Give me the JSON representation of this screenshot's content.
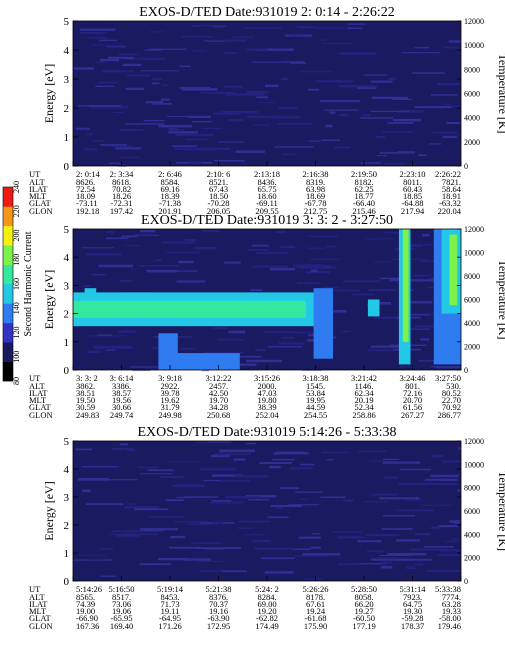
{
  "colorbar": {
    "label": "Second Harmonic Current",
    "ticks": [
      "80",
      "100",
      "120",
      "140",
      "160",
      "180",
      "200",
      "220",
      "240"
    ],
    "colors": [
      "#000000",
      "#1a1a60",
      "#3434c4",
      "#2f7cf0",
      "#22c8e6",
      "#34e8a0",
      "#7cf24a",
      "#f4f012",
      "#f49618",
      "#ee1a14"
    ]
  },
  "chart_data": [
    {
      "type": "heatmap",
      "title": "EXOS-D/TED   Date:931019  2: 0:14 - 2:26:22",
      "ylabel": "Energy [eV]",
      "ylim": [
        0,
        5
      ],
      "yticks": [
        "0",
        "1",
        "2",
        "3",
        "4",
        "5"
      ],
      "y2label": "Temperature [K]",
      "y2lim": [
        0,
        12000
      ],
      "y2ticks": [
        "0",
        "2000",
        "4000",
        "6000",
        "8000",
        "10000",
        "12000"
      ],
      "background_level": 100,
      "bands": [],
      "table": {
        "rows": [
          "UT",
          "ALT",
          "ILAT",
          "MLT",
          "GLAT",
          "GLON"
        ],
        "columns": [
          [
            "2: 0:14",
            "8626.",
            "72.54",
            "18.09",
            "-73.11",
            "192.18"
          ],
          [
            "2: 3:34",
            "8618.",
            "70.82",
            "18.26",
            "-72.31",
            "197.42"
          ],
          [
            "2: 6:46",
            "8584.",
            "69.16",
            "18.39",
            "-71.38",
            "201.91"
          ],
          [
            "2:10: 6",
            "8521.",
            "67.43",
            "18.50",
            "-70.28",
            "206.05"
          ],
          [
            "2:13:18",
            "8436.",
            "65.75",
            "18.60",
            "-69.11",
            "209.55"
          ],
          [
            "2:16:38",
            "8319.",
            "63.98",
            "18.69",
            "-67.78",
            "212.75"
          ],
          [
            "2:19:50",
            "8182.",
            "62.25",
            "18.77",
            "-66.40",
            "215.46"
          ],
          [
            "2:23:10",
            "8011.",
            "60.43",
            "18.85",
            "-64.88",
            "217.94"
          ],
          [
            "2:26:22",
            "7821.",
            "58.64",
            "18.91",
            "-63.32",
            "220.04"
          ]
        ]
      }
    },
    {
      "type": "heatmap",
      "title": "EXOS-D/TED   Date:931019  3: 3: 2 - 3:27:50",
      "ylabel": "Energy [eV]",
      "ylim": [
        0,
        5
      ],
      "yticks": [
        "0",
        "1",
        "2",
        "3",
        "4",
        "5"
      ],
      "y2label": "Temperature [K]",
      "y2lim": [
        0,
        12000
      ],
      "y2ticks": [
        "0",
        "2000",
        "4000",
        "6000",
        "8000",
        "10000",
        "12000"
      ],
      "background_level": 110,
      "bands": [
        {
          "t0": 0.0,
          "t1": 0.63,
          "e0": 1.55,
          "e1": 2.75,
          "level": 150
        },
        {
          "t0": 0.0,
          "t1": 0.6,
          "e0": 1.85,
          "e1": 2.45,
          "level": 160
        },
        {
          "t0": 0.0,
          "t1": 0.6,
          "e0": 2.0,
          "e1": 2.3,
          "level": 175
        },
        {
          "t0": 0.03,
          "t1": 0.06,
          "e0": 2.6,
          "e1": 2.9,
          "level": 150
        },
        {
          "t0": 0.22,
          "t1": 0.27,
          "e0": 0.0,
          "e1": 1.3,
          "level": 130
        },
        {
          "t0": 0.25,
          "t1": 0.43,
          "e0": 0.0,
          "e1": 0.6,
          "level": 130
        },
        {
          "t0": 0.62,
          "t1": 0.67,
          "e0": 0.4,
          "e1": 2.9,
          "level": 140
        },
        {
          "t0": 0.76,
          "t1": 0.79,
          "e0": 1.9,
          "e1": 2.5,
          "level": 145
        },
        {
          "t0": 0.84,
          "t1": 0.87,
          "e0": 0.2,
          "e1": 5.0,
          "level": 155
        },
        {
          "t0": 0.85,
          "t1": 0.865,
          "e0": 1.0,
          "e1": 5.0,
          "level": 180
        },
        {
          "t0": 0.93,
          "t1": 1.0,
          "e0": 0.2,
          "e1": 5.0,
          "level": 135
        },
        {
          "t0": 0.95,
          "t1": 1.0,
          "e0": 2.0,
          "e1": 5.0,
          "level": 155
        },
        {
          "t0": 0.97,
          "t1": 0.99,
          "e0": 2.3,
          "e1": 4.8,
          "level": 180
        }
      ],
      "table": {
        "rows": [
          "UT",
          "ALT",
          "ILAT",
          "MLT",
          "GLAT",
          "GLON"
        ],
        "columns": [
          [
            "3: 3: 2",
            "3862.",
            "38.51",
            "19.50",
            "30.59",
            "249.83"
          ],
          [
            "3: 6:14",
            "3386.",
            "38.57",
            "19.56",
            "30.66",
            "249.74"
          ],
          [
            "3: 9:18",
            "2922.",
            "39.78",
            "19.62",
            "31.79",
            "249.98"
          ],
          [
            "3:12:22",
            "2457.",
            "42.50",
            "19.70",
            "34.28",
            "250.68"
          ],
          [
            "3:15:26",
            "2000.",
            "47.03",
            "19.80",
            "38.39",
            "252.04"
          ],
          [
            "3:18:38",
            "1545.",
            "53.84",
            "19.95",
            "44.59",
            "254.55"
          ],
          [
            "3:21:42",
            "1146.",
            "62.34",
            "20.19",
            "52.34",
            "258.86"
          ],
          [
            "3:24:46",
            "801.",
            "72.16",
            "20.70",
            "61.56",
            "267.27"
          ],
          [
            "3:27:50",
            "530.",
            "80.52",
            "22.70",
            "70.92",
            "286.77"
          ]
        ]
      }
    },
    {
      "type": "heatmap",
      "title": "EXOS-D/TED   Date:931019  5:14:26 - 5:33:38",
      "ylabel": "Energy [eV]",
      "ylim": [
        0,
        5
      ],
      "yticks": [
        "0",
        "1",
        "2",
        "3",
        "4",
        "5"
      ],
      "y2label": "Temperature [K]",
      "y2lim": [
        0,
        12000
      ],
      "y2ticks": [
        "0",
        "2000",
        "4000",
        "6000",
        "8000",
        "10000",
        "12000"
      ],
      "background_level": 100,
      "bands": [],
      "table": {
        "rows": [
          "UT",
          "ALT",
          "ILAT",
          "MLT",
          "GLAT",
          "GLON"
        ],
        "columns": [
          [
            "5:14:26",
            "8565.",
            "74.39",
            "19.00",
            "-66.90",
            "167.36"
          ],
          [
            "5:16:50",
            "8517.",
            "73.06",
            "19.06",
            "-65.95",
            "169.40"
          ],
          [
            "5:19:14",
            "8453.",
            "71.73",
            "19.11",
            "-64.95",
            "171.26"
          ],
          [
            "5:21:38",
            "8376.",
            "70.37",
            "19.16",
            "-63.90",
            "172.95"
          ],
          [
            "5:24: 2",
            "8284.",
            "69.00",
            "19.20",
            "-62.82",
            "174.49"
          ],
          [
            "5:26:26",
            "8178.",
            "67.61",
            "19.24",
            "-61.68",
            "175.90"
          ],
          [
            "5:28:50",
            "8058.",
            "66.20",
            "19.27",
            "-60.50",
            "177.19"
          ],
          [
            "5:31:14",
            "7923.",
            "64.75",
            "19.30",
            "-59.28",
            "178.37"
          ],
          [
            "5:33:38",
            "7774.",
            "63.28",
            "19.33",
            "-58.00",
            "179.46"
          ]
        ]
      }
    }
  ]
}
